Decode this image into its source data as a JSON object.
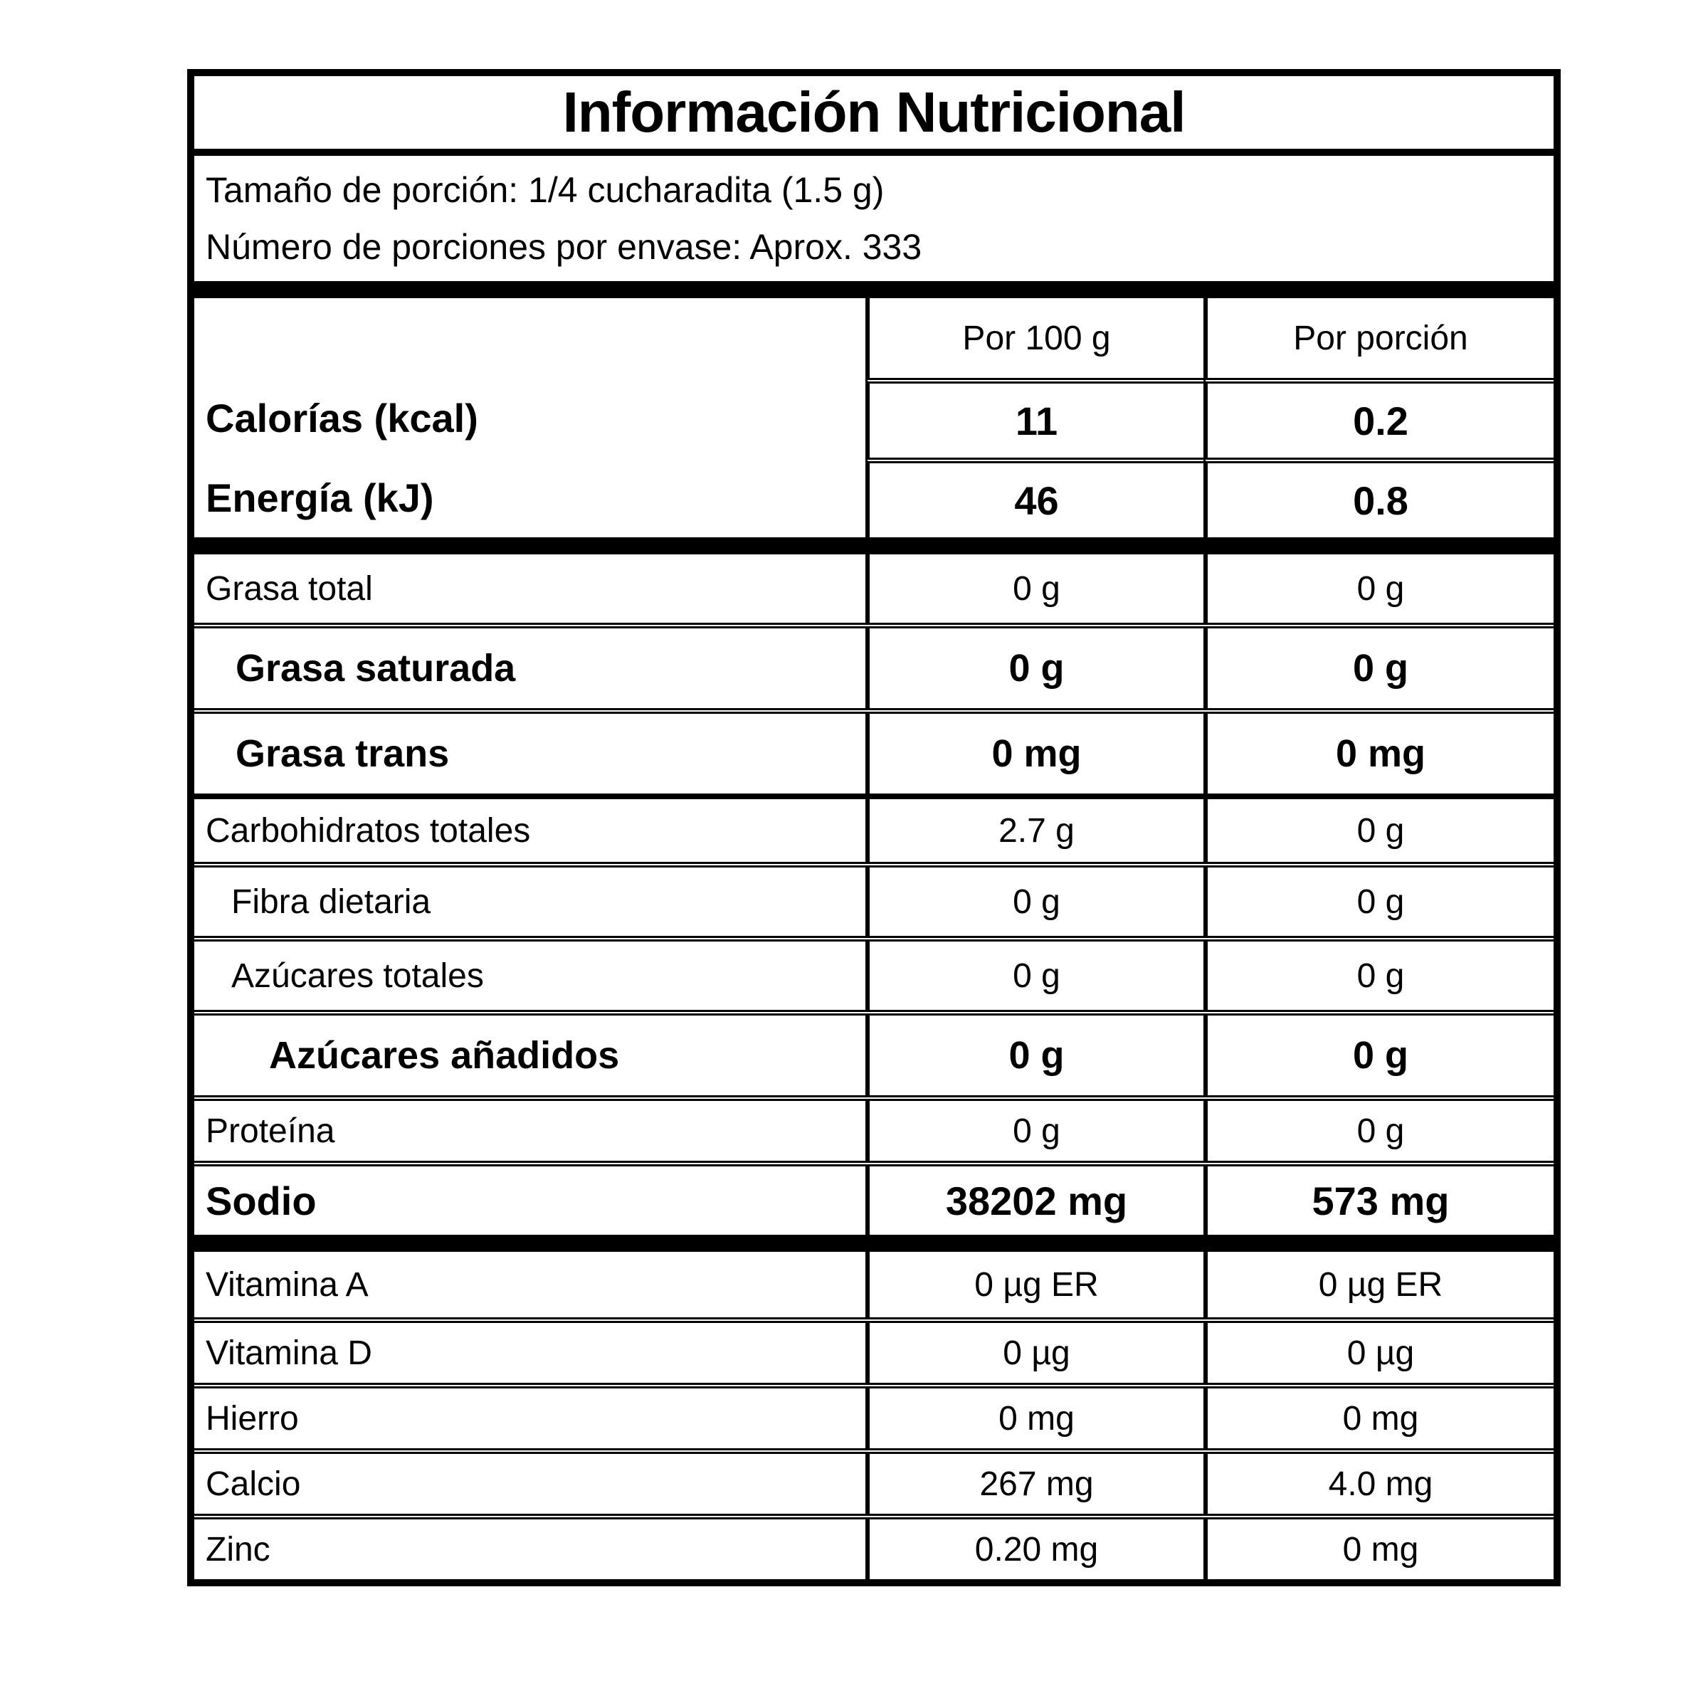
{
  "label": {
    "title": "Información Nutricional",
    "serving": {
      "line1": "Tamaño de porción: 1/4 cucharadita (1.5 g)",
      "line2": "Número de porciones por envase: Aprox. 333"
    },
    "columns": {
      "per_100g": "Por 100 g",
      "per_portion": "Por porción"
    },
    "energy_rows": [
      {
        "label": "Calorías (kcal)",
        "per_100g": "11",
        "per_portion": "0.2"
      },
      {
        "label": "Energía (kJ)",
        "per_100g": "46",
        "per_portion": "0.8"
      }
    ],
    "nutrient_rows": [
      {
        "label": "Grasa total",
        "per_100g": "0 g",
        "per_portion": "0 g"
      },
      {
        "label": "Grasa saturada",
        "per_100g": "0 g",
        "per_portion": "0 g"
      },
      {
        "label": "Grasa trans",
        "per_100g": "0 mg",
        "per_portion": "0 mg"
      },
      {
        "label": "Carbohidratos totales",
        "per_100g": "2.7 g",
        "per_portion": "0 g"
      },
      {
        "label": "Fibra dietaria",
        "per_100g": "0 g",
        "per_portion": "0 g"
      },
      {
        "label": "Azúcares totales",
        "per_100g": "0 g",
        "per_portion": "0 g"
      },
      {
        "label": "Azúcares añadidos",
        "per_100g": "0 g",
        "per_portion": "0 g"
      },
      {
        "label": "Proteína",
        "per_100g": "0 g",
        "per_portion": "0 g"
      },
      {
        "label": "Sodio",
        "per_100g": "38202 mg",
        "per_portion": "573 mg"
      }
    ],
    "micronutrient_rows": [
      {
        "label": "Vitamina A",
        "per_100g": "0 µg ER",
        "per_portion": "0 µg ER"
      },
      {
        "label": "Vitamina D",
        "per_100g": "0 µg",
        "per_portion": "0 µg"
      },
      {
        "label": "Hierro",
        "per_100g": "0 mg",
        "per_portion": "0 mg"
      },
      {
        "label": "Calcio",
        "per_100g": "267 mg",
        "per_portion": "4.0 mg"
      },
      {
        "label": "Zinc",
        "per_100g": "0.20 mg",
        "per_portion": "0 mg"
      }
    ]
  }
}
